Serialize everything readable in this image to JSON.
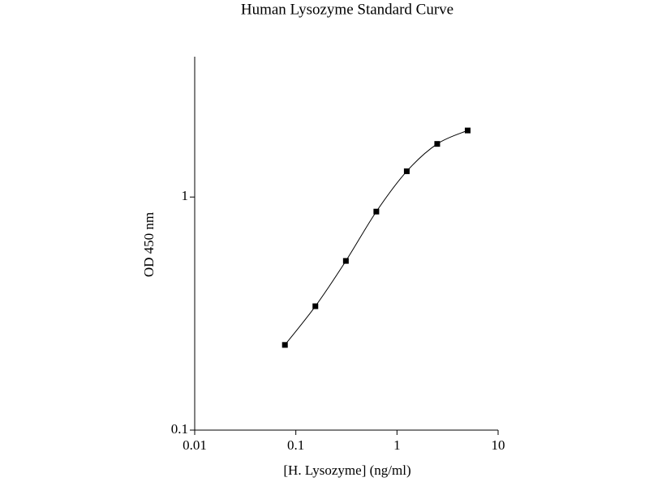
{
  "chart_data": {
    "type": "scatter",
    "title": "Human Lysozyme Standard Curve",
    "x_label": "[H. Lysozyme] (ng/ml)",
    "y_label": "OD 450 nm",
    "x": [
      0.078,
      0.156,
      0.3125,
      0.625,
      1.25,
      2.5,
      5
    ],
    "values": [
      0.232,
      0.34,
      0.532,
      0.866,
      1.29,
      1.69,
      1.93
    ],
    "color": "#000000",
    "xlim": [
      0.01,
      10
    ],
    "xticks": [
      0.01,
      0.1,
      1,
      10
    ],
    "ylim": [
      0.1,
      4
    ],
    "yticks": [
      0.1,
      1
    ],
    "xlog": true,
    "ylog": true,
    "fit_curve": true
  }
}
